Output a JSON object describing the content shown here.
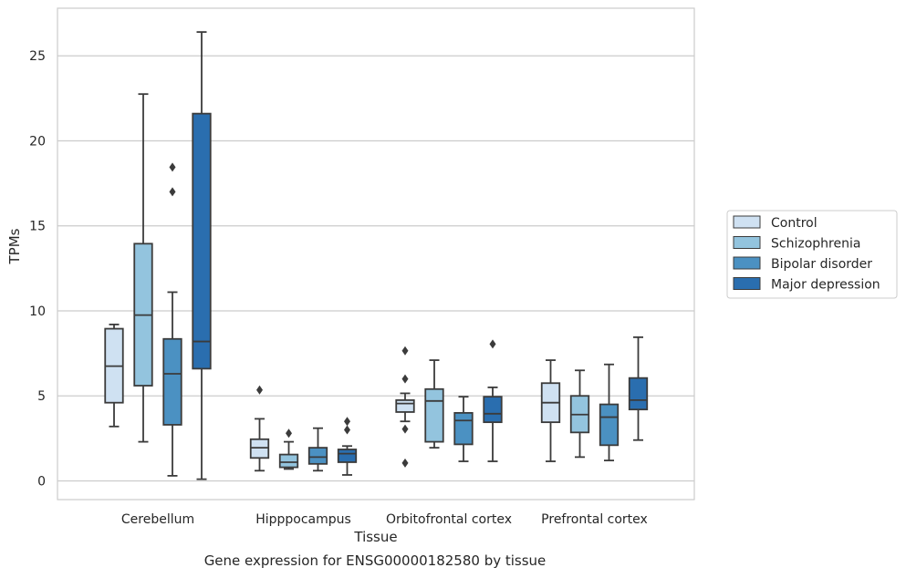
{
  "chart_data": {
    "type": "box",
    "title": "",
    "caption": "Gene expression for ENSG00000182580 by tissue",
    "xlabel": "Tissue",
    "ylabel": "TPMs",
    "ylim": [
      -1.1,
      27.8
    ],
    "yticks": [
      0,
      5,
      10,
      15,
      20,
      25
    ],
    "grid": true,
    "legend_position": "right-outside",
    "categories": [
      "Cerebellum",
      "Hipppocampus",
      "Orbitofrontal cortex",
      "Prefrontal cortex"
    ],
    "series": [
      {
        "name": "Control",
        "color": "#cfe1f2",
        "boxes": [
          {
            "whisker_low": 3.2,
            "q1": 4.6,
            "median": 6.75,
            "q3": 8.95,
            "whisker_high": 9.2,
            "outliers": []
          },
          {
            "whisker_low": 0.6,
            "q1": 1.35,
            "median": 1.95,
            "q3": 2.45,
            "whisker_high": 3.65,
            "outliers": [
              5.35
            ]
          },
          {
            "whisker_low": 3.5,
            "q1": 4.05,
            "median": 4.55,
            "q3": 4.75,
            "whisker_high": 5.15,
            "outliers": [
              7.65,
              6.0,
              3.05,
              1.05
            ]
          },
          {
            "whisker_low": 1.15,
            "q1": 3.45,
            "median": 4.6,
            "q3": 5.75,
            "whisker_high": 7.1,
            "outliers": []
          }
        ]
      },
      {
        "name": "Schizophrenia",
        "color": "#93c4de",
        "boxes": [
          {
            "whisker_low": 2.3,
            "q1": 5.6,
            "median": 9.75,
            "q3": 13.95,
            "whisker_high": 22.75,
            "outliers": []
          },
          {
            "whisker_low": 0.7,
            "q1": 0.8,
            "median": 1.1,
            "q3": 1.55,
            "whisker_high": 2.3,
            "outliers": [
              2.8
            ]
          },
          {
            "whisker_low": 1.95,
            "q1": 2.3,
            "median": 4.7,
            "q3": 5.4,
            "whisker_high": 7.1,
            "outliers": []
          },
          {
            "whisker_low": 1.4,
            "q1": 2.85,
            "median": 3.9,
            "q3": 5.0,
            "whisker_high": 6.5,
            "outliers": []
          }
        ]
      },
      {
        "name": "Bipolar disorder",
        "color": "#4b91c2",
        "boxes": [
          {
            "whisker_low": 0.3,
            "q1": 3.3,
            "median": 6.3,
            "q3": 8.35,
            "whisker_high": 11.1,
            "outliers": [
              18.45,
              17.0
            ]
          },
          {
            "whisker_low": 0.6,
            "q1": 1.0,
            "median": 1.4,
            "q3": 1.95,
            "whisker_high": 3.1,
            "outliers": []
          },
          {
            "whisker_low": 1.15,
            "q1": 2.15,
            "median": 3.55,
            "q3": 4.0,
            "whisker_high": 4.95,
            "outliers": []
          },
          {
            "whisker_low": 1.2,
            "q1": 2.1,
            "median": 3.75,
            "q3": 4.5,
            "whisker_high": 6.85,
            "outliers": []
          }
        ]
      },
      {
        "name": "Major depression",
        "color": "#2a6eaf",
        "boxes": [
          {
            "whisker_low": 0.1,
            "q1": 6.6,
            "median": 8.2,
            "q3": 21.6,
            "whisker_high": 26.4,
            "outliers": []
          },
          {
            "whisker_low": 0.35,
            "q1": 1.1,
            "median": 1.6,
            "q3": 1.85,
            "whisker_high": 2.05,
            "outliers": [
              3.5,
              3.0
            ]
          },
          {
            "whisker_low": 1.15,
            "q1": 3.45,
            "median": 3.95,
            "q3": 4.95,
            "whisker_high": 5.5,
            "outliers": [
              8.05
            ]
          },
          {
            "whisker_low": 2.4,
            "q1": 4.2,
            "median": 4.75,
            "q3": 6.05,
            "whisker_high": 8.45,
            "outliers": []
          }
        ]
      }
    ]
  }
}
